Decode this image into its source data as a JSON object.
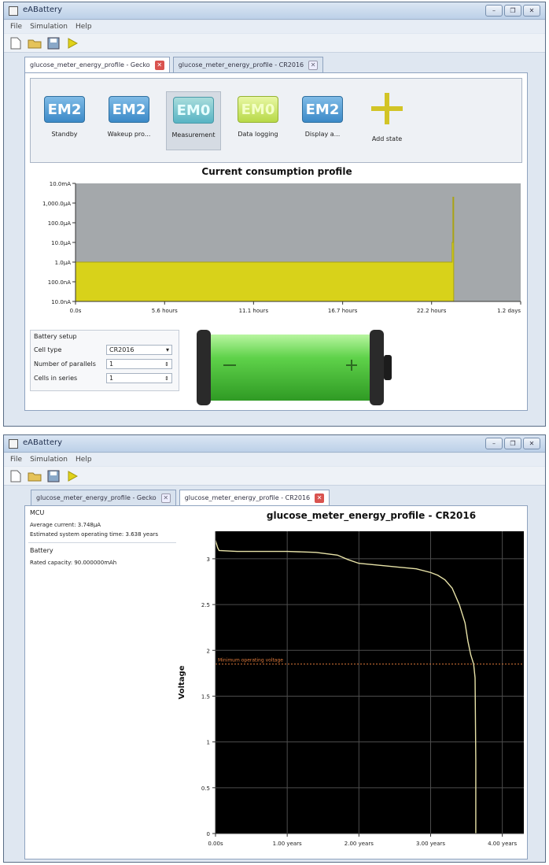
{
  "app": {
    "window_title": "eABattery",
    "menu": [
      "File",
      "Simulation",
      "Help"
    ],
    "window_buttons": [
      "–",
      "❐",
      "✕"
    ]
  },
  "window1": {
    "tabs": [
      {
        "label": "glucose_meter_energy_profile - Gecko",
        "active": true
      },
      {
        "label": "glucose_meter_energy_profile - CR2016",
        "active": false
      }
    ],
    "states": [
      {
        "mode": "EM2",
        "label": "Standby",
        "style": "blue"
      },
      {
        "mode": "EM2",
        "label": "Wakeup pro...",
        "style": "blue"
      },
      {
        "mode": "EM0",
        "label": "Measurement",
        "style": "teal",
        "selected": true
      },
      {
        "mode": "EM0",
        "label": "Data logging",
        "style": "lime"
      },
      {
        "mode": "EM2",
        "label": "Display a...",
        "style": "blue"
      }
    ],
    "add_state_label": "Add state",
    "battery_setup": {
      "title": "Battery setup",
      "cell_type_label": "Cell type",
      "cell_type_value": "CR2016",
      "parallel_label": "Number of parallels",
      "parallel_value": "1",
      "series_label": "Cells in series",
      "series_value": "1"
    }
  },
  "window2": {
    "tabs": [
      {
        "label": "glucose_meter_energy_profile - Gecko",
        "active": false
      },
      {
        "label": "glucose_meter_energy_profile - CR2016",
        "active": true
      }
    ],
    "info": {
      "mcu_heading": "MCU",
      "avg_current": "Average current: 3.748µA",
      "est_time": "Estimated system operating time: 3.638 years",
      "battery_heading": "Battery",
      "rated_capacity": "Rated capacity: 90.000000mAh"
    }
  },
  "colors": {
    "plot_bg1": "#a4a8ab",
    "bar_fill": "#d8d21a",
    "plot_bg2": "#000000",
    "voltage_line": "#e8e3a8",
    "cutoff_line": "#e07a3a",
    "grid2": "#4d4d4d"
  },
  "chart_data": [
    {
      "type": "area",
      "title": "Current consumption profile",
      "xlabel": "",
      "ylabel": "",
      "y_scale": "log",
      "y_tick_labels": [
        "10.0nA",
        "100.0nA",
        "1.0µA",
        "10.0µA",
        "100.0µA",
        "1,000.0µA",
        "10.0mA"
      ],
      "y_tick_values_A": [
        1e-08,
        1e-07,
        1e-06,
        1e-05,
        0.0001,
        0.001,
        0.01
      ],
      "x_tick_labels": [
        "0.0s",
        "5.6 hours",
        "11.1 hours",
        "16.7 hours",
        "22.2 hours",
        "1.2 days"
      ],
      "x_tick_values_h": [
        0,
        5.56,
        11.11,
        16.67,
        22.22,
        27.78
      ],
      "xlim_h": [
        0,
        27.78
      ],
      "ylim_A": [
        1e-08,
        0.01
      ],
      "series": [
        {
          "x_h": [
            0,
            23.5,
            23.5,
            23.5,
            23.55,
            23.55,
            23.6,
            23.6
          ],
          "y_A": [
            1e-06,
            1e-06,
            1e-05,
            1e-05,
            1e-05,
            0.002,
            0.002,
            1e-08
          ]
        }
      ],
      "grid": false,
      "legend": "none"
    },
    {
      "type": "line",
      "title": "glucose_meter_energy_profile - CR2016",
      "xlabel": "",
      "ylabel": "Voltage",
      "x_tick_labels": [
        "0.00s",
        "1.00 years",
        "2.00 years",
        "3.00 years",
        "4.00 years"
      ],
      "x_tick_values": [
        0,
        1,
        2,
        3,
        4
      ],
      "y_tick_labels": [
        "0",
        "0.5",
        "1",
        "1.5",
        "2",
        "2.5",
        "3"
      ],
      "y_tick_values": [
        0,
        0.5,
        1,
        1.5,
        2,
        2.5,
        3
      ],
      "xlim": [
        0,
        4.3
      ],
      "ylim": [
        0,
        3.3
      ],
      "series": [
        {
          "x": [
            0,
            0.03,
            0.05,
            0.3,
            0.6,
            1.0,
            1.4,
            1.7,
            1.85,
            2.0,
            2.4,
            2.8,
            3.0,
            3.1,
            3.2,
            3.3,
            3.4,
            3.48,
            3.52,
            3.56,
            3.6,
            3.62,
            3.63,
            3.63
          ],
          "y": [
            3.2,
            3.12,
            3.09,
            3.08,
            3.08,
            3.08,
            3.07,
            3.04,
            2.99,
            2.95,
            2.92,
            2.89,
            2.85,
            2.82,
            2.77,
            2.68,
            2.5,
            2.3,
            2.1,
            1.95,
            1.85,
            1.7,
            0.8,
            0.0
          ]
        }
      ],
      "annotations": [
        {
          "text": "Minimum operating voltage",
          "y": 1.85
        }
      ],
      "grid": true,
      "legend": "none"
    }
  ]
}
